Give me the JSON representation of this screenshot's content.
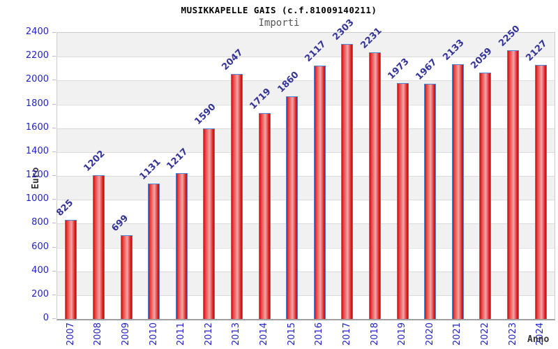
{
  "header": {
    "title": "MUSIKKAPELLE GAIS (c.f.81009140211)",
    "subtitle": "Importi"
  },
  "chart_data": {
    "type": "bar",
    "title": "MUSIKKAPELLE GAIS (c.f.81009140211)",
    "subtitle": "Importi",
    "xlabel": "Anno",
    "ylabel": "Euro",
    "categories": [
      "2007",
      "2008",
      "2009",
      "2010",
      "2011",
      "2012",
      "2013",
      "2014",
      "2015",
      "2016",
      "2017",
      "2018",
      "2019",
      "2020",
      "2021",
      "2022",
      "2023",
      "2024"
    ],
    "values": [
      825,
      1202,
      699,
      1131,
      1217,
      1590,
      2047,
      1719,
      1860,
      2117,
      2303,
      2231,
      1973,
      1967,
      2133,
      2059,
      2250,
      2127
    ],
    "ylim": [
      0,
      2400
    ],
    "y_ticks": [
      0,
      200,
      400,
      600,
      800,
      1000,
      1200,
      1400,
      1600,
      1800,
      2000,
      2200,
      2400
    ],
    "grid": true,
    "legend": "none",
    "bands": "alternating horizontal 200-unit bands, gray band from 200-400 upward alternating",
    "colors": {
      "title": "#000000",
      "subtitle": "#555555",
      "tick_label": "#2222cc",
      "value_label": "#333399",
      "axis_title": "#333333",
      "bar_border": "#4a86d8",
      "bar_fill_edge": "#cc1111",
      "bar_fill_mid": "#f3a6a6",
      "band_gray": "#f1f1f1",
      "band_white": "#ffffff"
    }
  }
}
